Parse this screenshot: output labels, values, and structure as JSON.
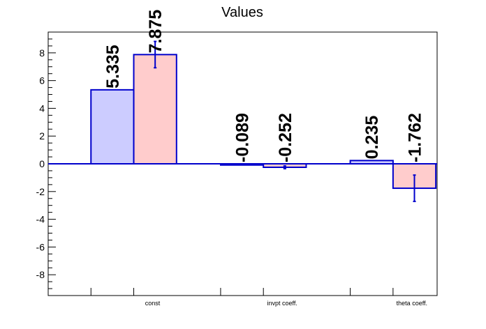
{
  "chart_data": {
    "type": "bar",
    "title": "Values",
    "xlabel": "",
    "ylabel": "",
    "categories": [
      "const",
      "invpt coeff.",
      "theta coeff."
    ],
    "ylim": [
      -9.5,
      9.5
    ],
    "yticks": [
      -8,
      -6,
      -4,
      -2,
      0,
      2,
      4,
      6,
      8
    ],
    "grid": false,
    "series": [
      {
        "values": [
          5.335,
          -0.089,
          0.235
        ],
        "value_labels": [
          "5.335",
          "-0.089",
          "0.235"
        ],
        "errors": [
          null,
          null,
          null
        ],
        "fill": "#ccccff",
        "stroke": "#0000cc"
      },
      {
        "values": [
          7.875,
          -0.252,
          -1.762
        ],
        "value_labels": [
          "7.875",
          "-0.252",
          "-1.762"
        ],
        "errors": [
          0.95,
          0.1,
          0.95
        ],
        "fill": "#ffcccc",
        "stroke": "#0000cc"
      }
    ]
  }
}
